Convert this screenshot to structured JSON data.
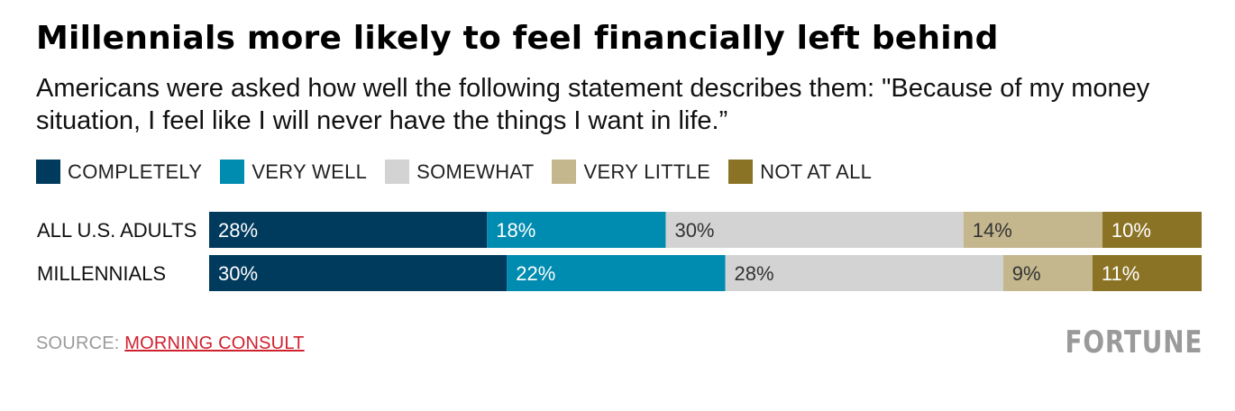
{
  "title": "Millennials more likely to feel financially left behind",
  "subtitle": "Americans were asked how well the following statement describes them: \"Because of my money situation, I feel like I will never have the things I want in life.”",
  "source_prefix": "SOURCE: ",
  "source_link": "MORNING CONSULT",
  "brand": "FORTUNE",
  "chart_data": {
    "type": "bar",
    "orientation": "horizontal",
    "stacked": true,
    "legend_position": "top-left",
    "grid": false,
    "xlim": [
      0,
      100
    ],
    "categories": [
      "ALL U.S. ADULTS",
      "MILLENNIALS"
    ],
    "series": [
      {
        "name": "COMPLETELY",
        "color": "#003a5d",
        "values": [
          28,
          30
        ],
        "labels": [
          "28%",
          "30%"
        ]
      },
      {
        "name": "VERY WELL",
        "color": "#008bb0",
        "values": [
          18,
          22
        ],
        "labels": [
          "18%",
          "22%"
        ]
      },
      {
        "name": "SOMEWHAT",
        "color": "#d3d3d3",
        "values": [
          30,
          28
        ],
        "labels": [
          "30%",
          "28%"
        ]
      },
      {
        "name": "VERY LITTLE",
        "color": "#c4b78e",
        "values": [
          14,
          9
        ],
        "labels": [
          "14%",
          "9%"
        ]
      },
      {
        "name": "NOT AT ALL",
        "color": "#8b7326",
        "values": [
          10,
          11
        ],
        "labels": [
          "10%",
          "11%"
        ]
      }
    ]
  }
}
